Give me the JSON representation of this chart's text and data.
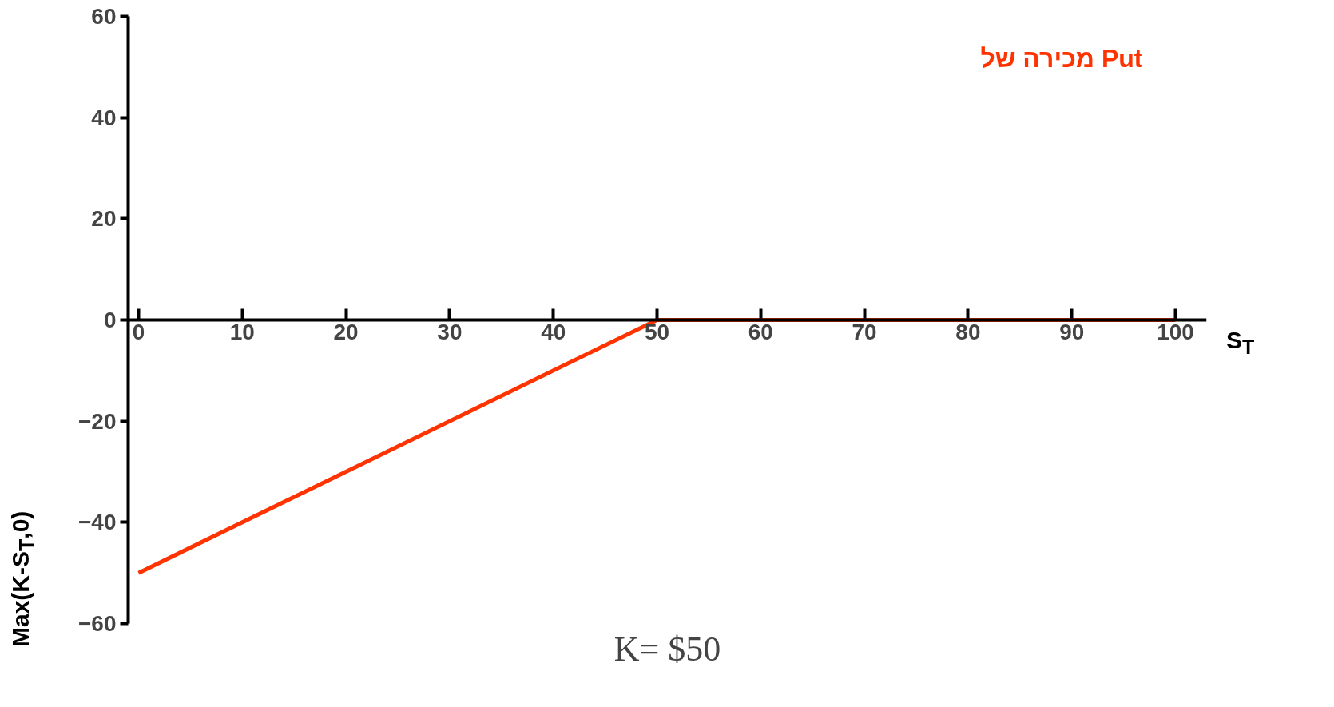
{
  "chart_data": {
    "type": "line",
    "xlabel": "S$_{T}$",
    "ylabel": "Max(K-S$_{T}$,0)",
    "x": [
      0,
      50,
      100
    ],
    "series": [
      {
        "name": "מכירה של Put",
        "color": "#ff3300",
        "values": [
          -50,
          0,
          0
        ]
      }
    ],
    "xlim": [
      -1,
      103
    ],
    "ylim": [
      -60,
      60
    ],
    "xticks": [
      0,
      10,
      20,
      30,
      40,
      50,
      60,
      70,
      80,
      90,
      100
    ],
    "yticks": [
      -60,
      -40,
      -20,
      0,
      20,
      40,
      60
    ],
    "grid": false,
    "legend": "top right",
    "marker": "none",
    "line_style": "solid",
    "annotations": [
      "K= $50"
    ]
  }
}
